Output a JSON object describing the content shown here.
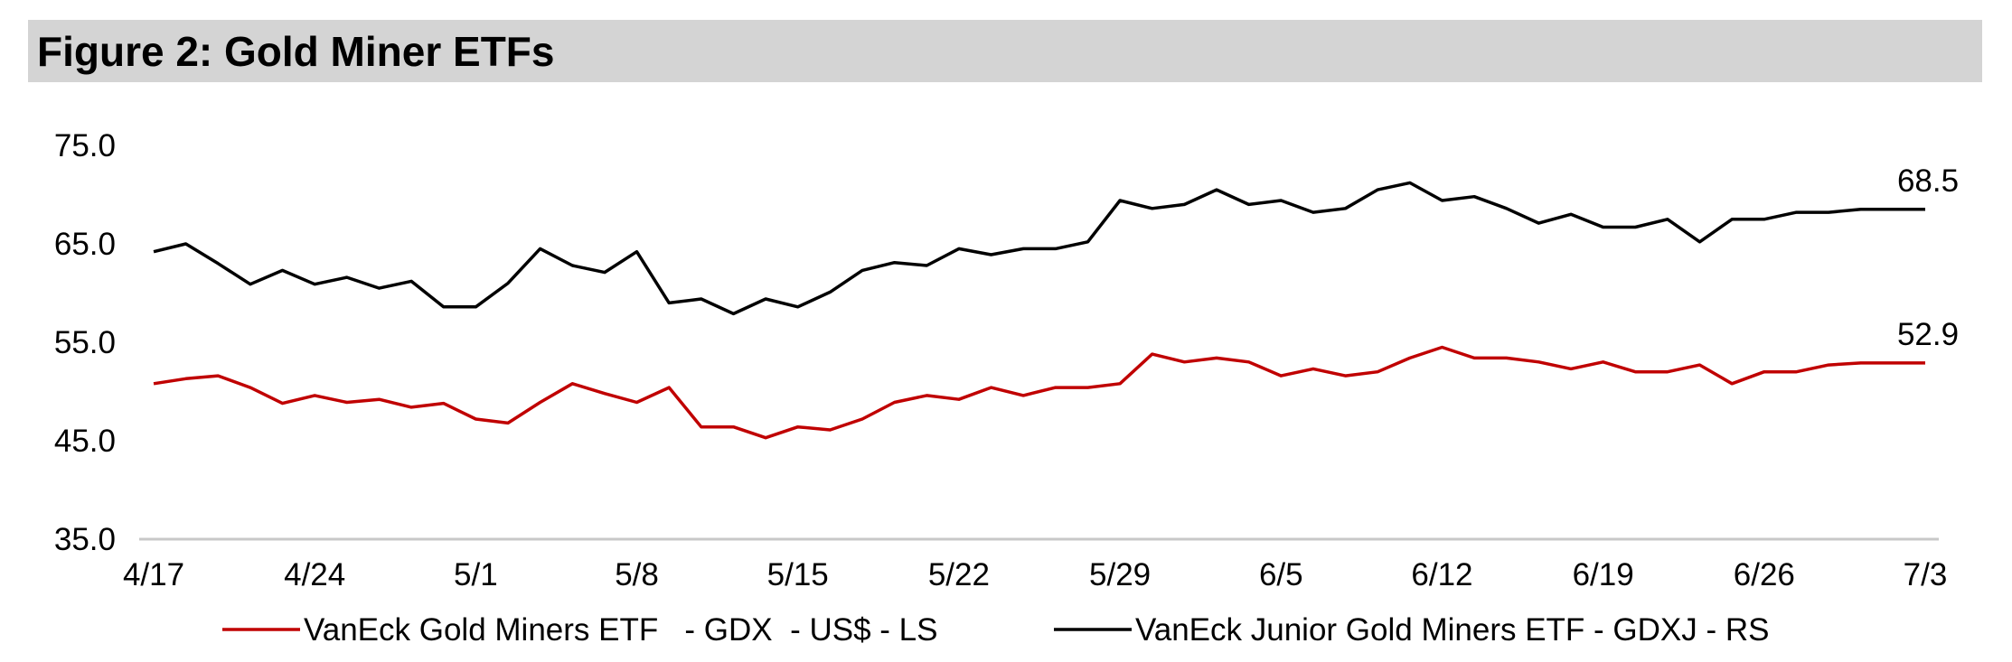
{
  "title": "Figure 2: Gold Miner ETFs",
  "chart_data": {
    "type": "line",
    "yticks": [
      "75.0",
      "65.0",
      "55.0",
      "45.0",
      "35.0"
    ],
    "ylim": [
      35,
      75
    ],
    "x_tick_labels": [
      "4/17",
      "4/24",
      "5/1",
      "5/8",
      "5/15",
      "5/22",
      "5/29",
      "6/5",
      "6/12",
      "6/19",
      "6/26",
      "7/3"
    ],
    "x": [
      "4/17",
      "4/18",
      "4/19",
      "4/20",
      "4/21",
      "4/24",
      "4/25",
      "4/26",
      "4/27",
      "4/28",
      "5/1",
      "5/2",
      "5/3",
      "5/4",
      "5/5",
      "5/8",
      "5/9",
      "5/10",
      "5/11",
      "5/12",
      "5/15",
      "5/16",
      "5/17",
      "5/18",
      "5/19",
      "5/22",
      "5/23",
      "5/24",
      "5/25",
      "5/26",
      "5/29",
      "5/30",
      "5/31",
      "6/1",
      "6/2",
      "6/5",
      "6/6",
      "6/7",
      "6/8",
      "6/9",
      "6/12",
      "6/13",
      "6/14",
      "6/15",
      "6/16",
      "6/19",
      "6/20",
      "6/21",
      "6/22",
      "6/23",
      "6/26",
      "6/27",
      "6/28",
      "6/29",
      "6/30",
      "7/3"
    ],
    "series": [
      {
        "name": "VanEck Gold Miners ETF   - GDX  - US$ - LS",
        "color": "#c00000",
        "values": [
          50.8,
          51.3,
          51.6,
          50.4,
          48.8,
          49.6,
          48.9,
          49.2,
          48.4,
          48.8,
          47.2,
          46.8,
          48.9,
          50.8,
          49.8,
          48.9,
          50.4,
          46.4,
          46.4,
          45.3,
          46.4,
          46.1,
          47.2,
          48.9,
          49.6,
          49.2,
          50.4,
          49.6,
          50.4,
          50.4,
          50.8,
          53.8,
          53.0,
          53.4,
          53.0,
          51.6,
          52.3,
          51.6,
          52.0,
          53.4,
          54.5,
          53.4,
          53.4,
          53.0,
          52.3,
          53.0,
          52.0,
          52.0,
          52.7,
          50.8,
          52.0,
          52.0,
          52.7,
          52.9,
          52.9,
          52.9
        ],
        "end_label": "52.9"
      },
      {
        "name": "VanEck Junior Gold Miners ETF - GDXJ - RS",
        "color": "#000000",
        "values": [
          64.2,
          65.0,
          63.0,
          60.9,
          62.3,
          60.9,
          61.6,
          60.5,
          61.2,
          58.6,
          58.6,
          61.0,
          64.5,
          62.8,
          62.1,
          64.2,
          59.0,
          59.4,
          57.9,
          59.4,
          58.6,
          60.1,
          62.3,
          63.1,
          62.8,
          64.5,
          63.9,
          64.5,
          64.5,
          65.2,
          69.4,
          68.6,
          69.0,
          70.5,
          69.0,
          69.4,
          68.2,
          68.6,
          70.5,
          71.2,
          69.4,
          69.8,
          68.6,
          67.1,
          68.0,
          66.7,
          66.7,
          67.5,
          65.2,
          67.5,
          67.5,
          68.2,
          68.2,
          68.5,
          68.5,
          68.5
        ],
        "end_label": "68.5"
      }
    ],
    "legend_position": "bottom",
    "grid": false
  }
}
